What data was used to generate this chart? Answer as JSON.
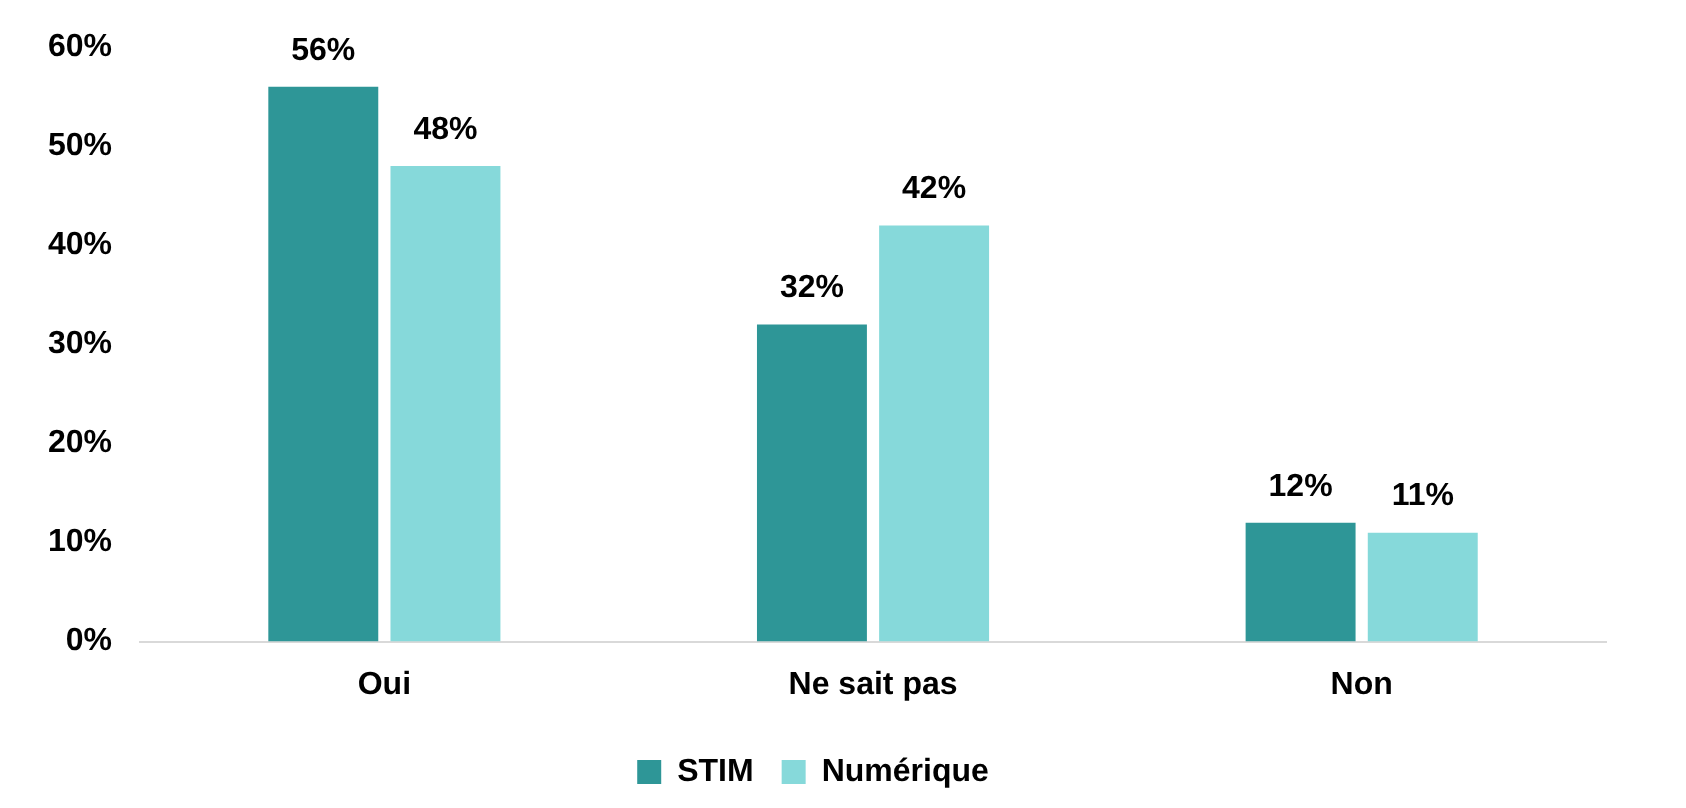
{
  "chart_data": {
    "type": "bar",
    "categories": [
      "Oui",
      "Ne sait pas",
      "Non"
    ],
    "series": [
      {
        "name": "STIM",
        "color": "#2e9697",
        "values": [
          56,
          32,
          12
        ],
        "value_labels": [
          "56%",
          "32%",
          "12%"
        ]
      },
      {
        "name": "Numérique",
        "color": "#86d9da",
        "values": [
          48,
          42,
          11
        ],
        "value_labels": [
          "48%",
          "42%",
          "11%"
        ]
      }
    ],
    "ylim": [
      0,
      60
    ],
    "yticks": [
      {
        "value": 0,
        "label": "0%"
      },
      {
        "value": 10,
        "label": "10%"
      },
      {
        "value": 20,
        "label": "20%"
      },
      {
        "value": 30,
        "label": "30%"
      },
      {
        "value": 40,
        "label": "40%"
      },
      {
        "value": 50,
        "label": "50%"
      },
      {
        "value": 60,
        "label": "60%"
      }
    ],
    "grid": false,
    "legend": "bottom"
  }
}
